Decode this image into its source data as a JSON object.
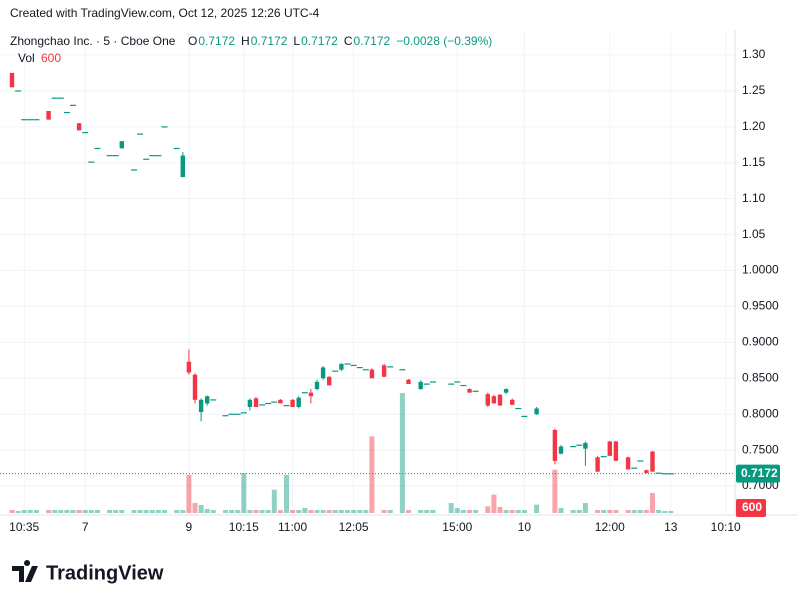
{
  "chart_data": {
    "type": "candlestick",
    "created": "Created with TradingView.com, Oct 12, 2025 12:26 UTC-4",
    "symbol": "Zhongchao Inc. · 5 · Cboe One",
    "legend": {
      "o_label": "O",
      "o": 0.7172,
      "h_label": "H",
      "h": 0.7172,
      "l_label": "L",
      "l": 0.7172,
      "c_label": "C",
      "c": 0.7172,
      "change": "−0.0028 (−0.39%)",
      "vol_label": "Vol",
      "vol": 600
    },
    "last_price": 0.7172,
    "last_volume": 600,
    "brand": "TradingView",
    "up_color": "#089981",
    "down_color": "#f23645",
    "ylim": [
      0.68,
      1.32
    ],
    "yticks": [
      {
        "value": 1.3,
        "label": "1.30"
      },
      1.25,
      {
        "value": 1.2,
        "label": "1.20"
      },
      1.15,
      {
        "value": 1.1,
        "label": "1.10"
      },
      1.05,
      {
        "value": 1.0,
        "label": "1.0000"
      },
      {
        "value": 0.95,
        "label": "0.9500"
      },
      {
        "value": 0.9,
        "label": "0.9000"
      },
      {
        "value": 0.85,
        "label": "0.8500"
      },
      {
        "value": 0.8,
        "label": "0.8000"
      },
      {
        "value": 0.75,
        "label": "0.7500"
      },
      {
        "value": 0.7,
        "label": "0.7000"
      }
    ],
    "grid": true,
    "categories": [
      null,
      null,
      "10:35",
      null,
      null,
      null,
      null,
      null,
      null,
      null,
      null,
      null,
      "7",
      null,
      null,
      null,
      null,
      null,
      null,
      null,
      null,
      null,
      null,
      null,
      null,
      null,
      null,
      null,
      null,
      "9",
      null,
      null,
      null,
      null,
      null,
      null,
      null,
      null,
      "10:15",
      null,
      null,
      null,
      null,
      null,
      null,
      null,
      "11:00",
      null,
      null,
      null,
      null,
      null,
      null,
      null,
      null,
      null,
      "12:05",
      null,
      null,
      null,
      null,
      null,
      null,
      null,
      null,
      null,
      null,
      null,
      null,
      null,
      null,
      null,
      null,
      "15:00",
      null,
      null,
      null,
      null,
      null,
      null,
      null,
      null,
      null,
      null,
      "10",
      null,
      null,
      null,
      null,
      null,
      null,
      null,
      null,
      null,
      null,
      null,
      null,
      null,
      "12:00",
      null,
      null,
      null,
      null,
      null,
      null,
      null,
      null,
      null,
      "13",
      null,
      null,
      null,
      null,
      null,
      null,
      null,
      null,
      "10:10"
    ],
    "ohlc": [
      [
        1.275,
        1.275,
        1.255,
        1.255
      ],
      [
        1.25,
        1.25,
        1.25,
        1.25
      ],
      [
        1.21,
        1.21,
        1.21,
        1.21
      ],
      [
        1.21,
        1.21,
        1.21,
        1.21
      ],
      [
        1.21,
        1.21,
        1.21,
        1.21
      ],
      null,
      [
        1.222,
        1.222,
        1.21,
        1.21
      ],
      [
        1.24,
        1.24,
        1.24,
        1.24
      ],
      [
        1.24,
        1.24,
        1.24,
        1.24
      ],
      [
        1.22,
        1.22,
        1.22,
        1.22
      ],
      [
        1.23,
        1.23,
        1.23,
        1.23
      ],
      [
        1.205,
        1.205,
        1.195,
        1.195
      ],
      [
        1.192,
        1.192,
        1.192,
        1.192
      ],
      [
        1.151,
        1.151,
        1.151,
        1.151
      ],
      [
        1.17,
        1.17,
        1.17,
        1.17
      ],
      null,
      [
        1.16,
        1.16,
        1.16,
        1.16
      ],
      [
        1.16,
        1.16,
        1.16,
        1.16
      ],
      [
        1.17,
        1.18,
        1.17,
        1.18
      ],
      null,
      [
        1.14,
        1.14,
        1.14,
        1.14
      ],
      [
        1.19,
        1.19,
        1.19,
        1.19
      ],
      [
        1.155,
        1.155,
        1.155,
        1.155
      ],
      [
        1.16,
        1.16,
        1.16,
        1.16
      ],
      [
        1.16,
        1.16,
        1.16,
        1.16
      ],
      [
        1.2,
        1.2,
        1.2,
        1.2
      ],
      null,
      [
        1.17,
        1.17,
        1.17,
        1.17
      ],
      [
        1.13,
        1.165,
        1.13,
        1.16
      ],
      [
        0.873,
        0.89,
        0.855,
        0.858
      ],
      [
        0.855,
        0.857,
        0.815,
        0.82
      ],
      [
        0.803,
        0.822,
        0.79,
        0.82
      ],
      [
        0.815,
        0.826,
        0.812,
        0.825
      ],
      [
        0.82,
        0.82,
        0.82,
        0.82
      ],
      null,
      [
        0.798,
        0.798,
        0.798,
        0.798
      ],
      [
        0.8,
        0.8,
        0.8,
        0.8
      ],
      [
        0.8,
        0.8,
        0.8,
        0.8
      ],
      [
        0.802,
        0.802,
        0.802,
        0.802
      ],
      [
        0.81,
        0.822,
        0.805,
        0.82
      ],
      [
        0.822,
        0.824,
        0.81,
        0.81
      ],
      [
        0.813,
        0.813,
        0.813,
        0.813
      ],
      [
        0.815,
        0.815,
        0.815,
        0.815
      ],
      [
        0.817,
        0.817,
        0.817,
        0.817
      ],
      [
        0.82,
        0.821,
        0.815,
        0.815
      ],
      [
        0.812,
        0.812,
        0.812,
        0.812
      ],
      [
        0.82,
        0.821,
        0.81,
        0.81
      ],
      [
        0.81,
        0.825,
        0.808,
        0.823
      ],
      [
        0.83,
        0.83,
        0.83,
        0.83
      ],
      [
        0.83,
        0.835,
        0.815,
        0.825
      ],
      [
        0.835,
        0.848,
        0.833,
        0.845
      ],
      [
        0.85,
        0.867,
        0.848,
        0.865
      ],
      [
        0.852,
        0.853,
        0.84,
        0.84
      ],
      [
        0.86,
        0.86,
        0.86,
        0.86
      ],
      [
        0.862,
        0.871,
        0.86,
        0.87
      ],
      [
        0.87,
        0.87,
        0.87,
        0.87
      ],
      [
        0.868,
        0.868,
        0.868,
        0.868
      ],
      [
        0.865,
        0.865,
        0.865,
        0.865
      ],
      [
        0.862,
        0.862,
        0.862,
        0.862
      ],
      [
        0.862,
        0.864,
        0.85,
        0.85
      ],
      null,
      [
        0.868,
        0.87,
        0.852,
        0.852
      ],
      [
        0.866,
        0.866,
        0.866,
        0.866
      ],
      null,
      [
        0.862,
        0.862,
        0.862,
        0.862
      ],
      [
        0.848,
        0.849,
        0.842,
        0.842
      ],
      null,
      [
        0.835,
        0.847,
        0.834,
        0.845
      ],
      [
        0.842,
        0.842,
        0.842,
        0.842
      ],
      [
        0.845,
        0.845,
        0.845,
        0.845
      ],
      null,
      null,
      [
        0.842,
        0.842,
        0.842,
        0.842
      ],
      [
        0.845,
        0.845,
        0.845,
        0.845
      ],
      [
        0.84,
        0.84,
        0.84,
        0.84
      ],
      [
        0.835,
        0.836,
        0.83,
        0.83
      ],
      [
        0.832,
        0.832,
        0.832,
        0.832
      ],
      null,
      [
        0.828,
        0.83,
        0.81,
        0.812
      ],
      [
        0.825,
        0.827,
        0.815,
        0.815
      ],
      [
        0.827,
        0.828,
        0.812,
        0.812
      ],
      [
        0.83,
        0.836,
        0.828,
        0.835
      ],
      [
        0.82,
        0.822,
        0.813,
        0.813
      ],
      [
        0.808,
        0.808,
        0.808,
        0.808
      ],
      [
        0.797,
        0.797,
        0.797,
        0.797
      ],
      null,
      [
        0.8,
        0.81,
        0.799,
        0.808
      ],
      null,
      null,
      [
        0.778,
        0.78,
        0.73,
        0.735
      ],
      [
        0.745,
        0.757,
        0.744,
        0.755
      ],
      null,
      [
        0.755,
        0.755,
        0.755,
        0.755
      ],
      [
        0.757,
        0.757,
        0.757,
        0.757
      ],
      [
        0.752,
        0.762,
        0.728,
        0.76
      ],
      null,
      [
        0.74,
        0.742,
        0.72,
        0.72
      ],
      [
        0.741,
        0.741,
        0.741,
        0.741
      ],
      [
        0.762,
        0.763,
        0.742,
        0.742
      ],
      [
        0.762,
        0.763,
        0.735,
        0.735
      ],
      null,
      [
        0.74,
        0.741,
        0.723,
        0.723
      ],
      [
        0.725,
        0.725,
        0.725,
        0.725
      ],
      [
        0.735,
        0.735,
        0.735,
        0.735
      ],
      [
        0.722,
        0.723,
        0.718,
        0.718
      ],
      [
        0.748,
        0.749,
        0.72,
        0.72
      ],
      [
        0.718,
        0.718,
        0.718,
        0.718
      ],
      [
        0.7172,
        0.7172,
        0.7172,
        0.7172
      ],
      [
        0.7172,
        0.7172,
        0.7172,
        0.7172
      ],
      null,
      null,
      null,
      null,
      null,
      null,
      null,
      null,
      null
    ],
    "volume": [
      900,
      600,
      900,
      900,
      900,
      null,
      900,
      900,
      900,
      900,
      900,
      900,
      900,
      900,
      900,
      null,
      900,
      900,
      900,
      null,
      900,
      900,
      900,
      900,
      900,
      900,
      null,
      900,
      900,
      11400,
      3000,
      2400,
      1200,
      900,
      null,
      900,
      900,
      900,
      12000,
      900,
      900,
      900,
      900,
      7000,
      900,
      11400,
      900,
      900,
      1500,
      900,
      900,
      900,
      900,
      900,
      900,
      900,
      900,
      900,
      900,
      23000,
      null,
      900,
      900,
      null,
      36000,
      900,
      null,
      900,
      900,
      900,
      null,
      null,
      3000,
      1500,
      900,
      900,
      900,
      null,
      2000,
      5500,
      1800,
      900,
      900,
      900,
      900,
      null,
      2500,
      null,
      null,
      13000,
      1500,
      null,
      900,
      900,
      3000,
      null,
      900,
      900,
      900,
      900,
      null,
      900,
      900,
      900,
      900,
      6000,
      900,
      600,
      600,
      null,
      null,
      null,
      null,
      null,
      null,
      null,
      null,
      null
    ]
  }
}
